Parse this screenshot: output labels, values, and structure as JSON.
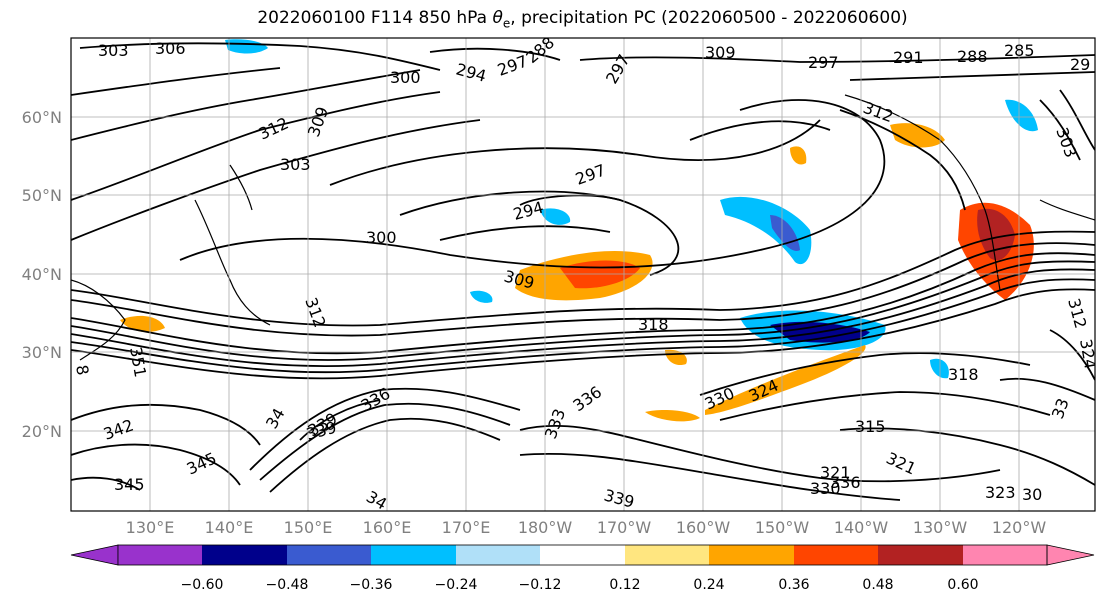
{
  "title": {
    "text_pre": "2022060100 F114 850 hPa ",
    "theta_symbol": "θ",
    "theta_sub": "e",
    "text_post": ", precipitation PC (2022060500 - 2022060600)"
  },
  "lat_labels": [
    "60°N",
    "50°N",
    "40°N",
    "30°N",
    "20°N"
  ],
  "lon_labels": [
    "130°E",
    "140°E",
    "150°E",
    "160°E",
    "170°E",
    "180°W",
    "170°W",
    "160°W",
    "150°W",
    "140°W",
    "130°W",
    "120°W"
  ],
  "colorbar": {
    "colors": [
      "#9932cc",
      "#00008b",
      "#3a5bd0",
      "#00bfff",
      "#b0e0f8",
      "#ffffff",
      "#ffe680",
      "#ffa500",
      "#ff4500",
      "#b22222",
      "#ff85b0"
    ],
    "ticks": [
      "−0.60",
      "−0.48",
      "−0.36",
      "−0.24",
      "−0.12",
      "0.12",
      "0.24",
      "0.36",
      "0.48",
      "0.60"
    ]
  },
  "contour_labels": [
    "303",
    "306",
    "300",
    "294",
    "297",
    "288",
    "297",
    "309",
    "297",
    "291",
    "288",
    "285",
    "29",
    "312",
    "309",
    "312",
    "303",
    "303",
    "297",
    "294",
    "300",
    "309",
    "312",
    "318",
    "312",
    "351",
    "8",
    "318",
    "321",
    "336",
    "339",
    "336",
    "330",
    "324",
    "342",
    "345",
    "34",
    "339",
    "345",
    "34",
    "333",
    "339",
    "315",
    "321",
    "330",
    "336",
    "323",
    "30",
    "324",
    "33"
  ],
  "precip_features": [
    {
      "kind": "positive-blob",
      "level": "strong"
    },
    {
      "kind": "negative-blob",
      "level": "moderate"
    }
  ]
}
